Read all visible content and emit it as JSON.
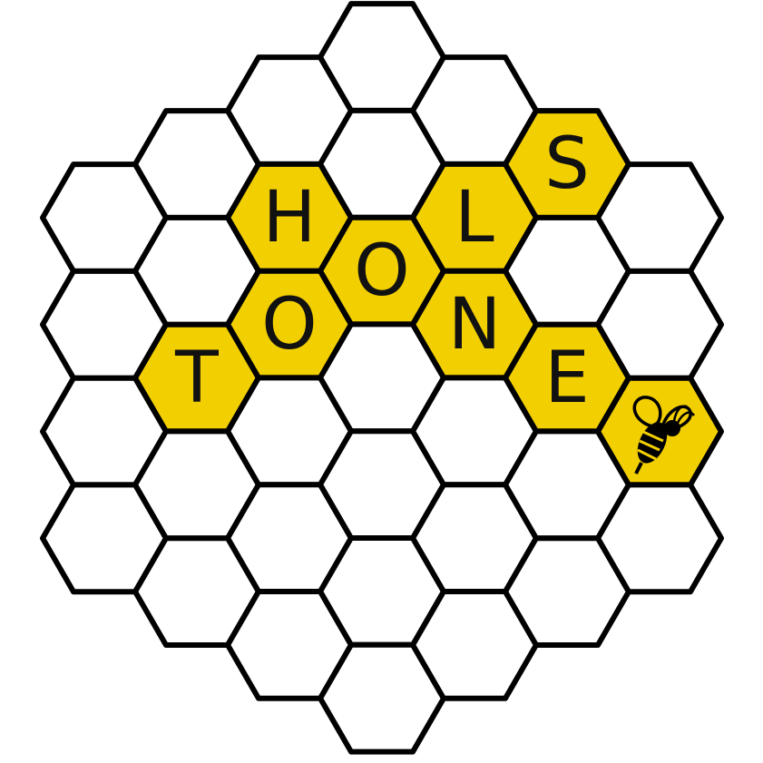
{
  "board": {
    "letters": [
      "H",
      "O",
      "L",
      "S",
      "T",
      "O",
      "N",
      "E"
    ]
  }
}
